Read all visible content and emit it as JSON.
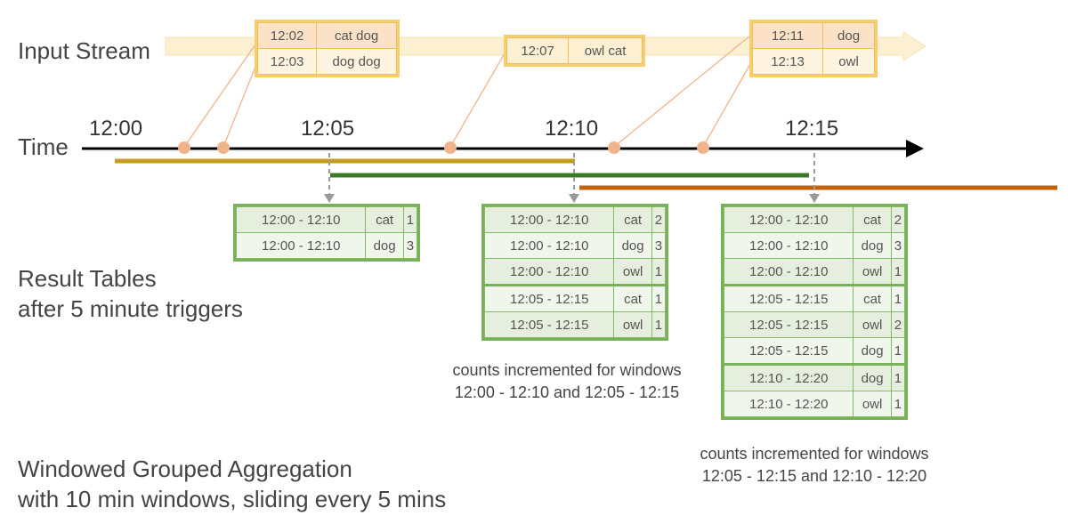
{
  "labels": {
    "input_stream": "Input Stream",
    "time": "Time",
    "result_tables_1": "Result Tables",
    "result_tables_2": "after 5 minute triggers",
    "title_1": "Windowed Grouped Aggregation",
    "title_2": "with 10 min windows, sliding every 5 mins"
  },
  "time_ticks": [
    "12:00",
    "12:05",
    "12:10",
    "12:15"
  ],
  "events": [
    {
      "group": [
        {
          "time": "12:02",
          "words": "cat dog"
        },
        {
          "time": "12:03",
          "words": "dog dog"
        }
      ]
    },
    {
      "group": [
        {
          "time": "12:07",
          "words": "owl cat"
        }
      ]
    },
    {
      "group": [
        {
          "time": "12:11",
          "words": "dog"
        },
        {
          "time": "12:13",
          "words": "owl"
        }
      ]
    }
  ],
  "result_tables": [
    {
      "rows": [
        {
          "window": "12:00 - 12:10",
          "word": "cat",
          "count": "1"
        },
        {
          "window": "12:00 - 12:10",
          "word": "dog",
          "count": "3"
        }
      ]
    },
    {
      "rows": [
        {
          "window": "12:00 - 12:10",
          "word": "cat",
          "count": "2"
        },
        {
          "window": "12:00 - 12:10",
          "word": "dog",
          "count": "3"
        },
        {
          "window": "12:00 - 12:10",
          "word": "owl",
          "count": "1"
        },
        {
          "window": "12:05 - 12:15",
          "word": "cat",
          "count": "1"
        },
        {
          "window": "12:05 - 12:15",
          "word": "owl",
          "count": "1"
        }
      ]
    },
    {
      "rows": [
        {
          "window": "12:00 - 12:10",
          "word": "cat",
          "count": "2"
        },
        {
          "window": "12:00 - 12:10",
          "word": "dog",
          "count": "3"
        },
        {
          "window": "12:00 - 12:10",
          "word": "owl",
          "count": "1"
        },
        {
          "window": "12:05 - 12:15",
          "word": "cat",
          "count": "1"
        },
        {
          "window": "12:05 - 12:15",
          "word": "owl",
          "count": "2"
        },
        {
          "window": "12:05 - 12:15",
          "word": "dog",
          "count": "1"
        },
        {
          "window": "12:10 - 12:20",
          "word": "dog",
          "count": "1"
        },
        {
          "window": "12:10 - 12:20",
          "word": "owl",
          "count": "1"
        }
      ]
    }
  ],
  "notes": {
    "note_1_line1": "counts incremented for windows",
    "note_1_line2": "12:00 - 12:10 and 12:05 - 12:15",
    "note_2_line1": "counts incremented for windows",
    "note_2_line2": "12:05 - 12:15 and 12:10 - 12:20"
  },
  "colors": {
    "stream_band": "#fdf0d2",
    "event_border": "#f5cf6d",
    "event_fill": "#fbe2c6",
    "event_dot": "#f0b48c",
    "window_12_00": "#c59a1f",
    "window_12_05": "#3b7a25",
    "window_12_10": "#c0620f",
    "result_border": "#79b159",
    "result_fill": "#e6efdd"
  }
}
